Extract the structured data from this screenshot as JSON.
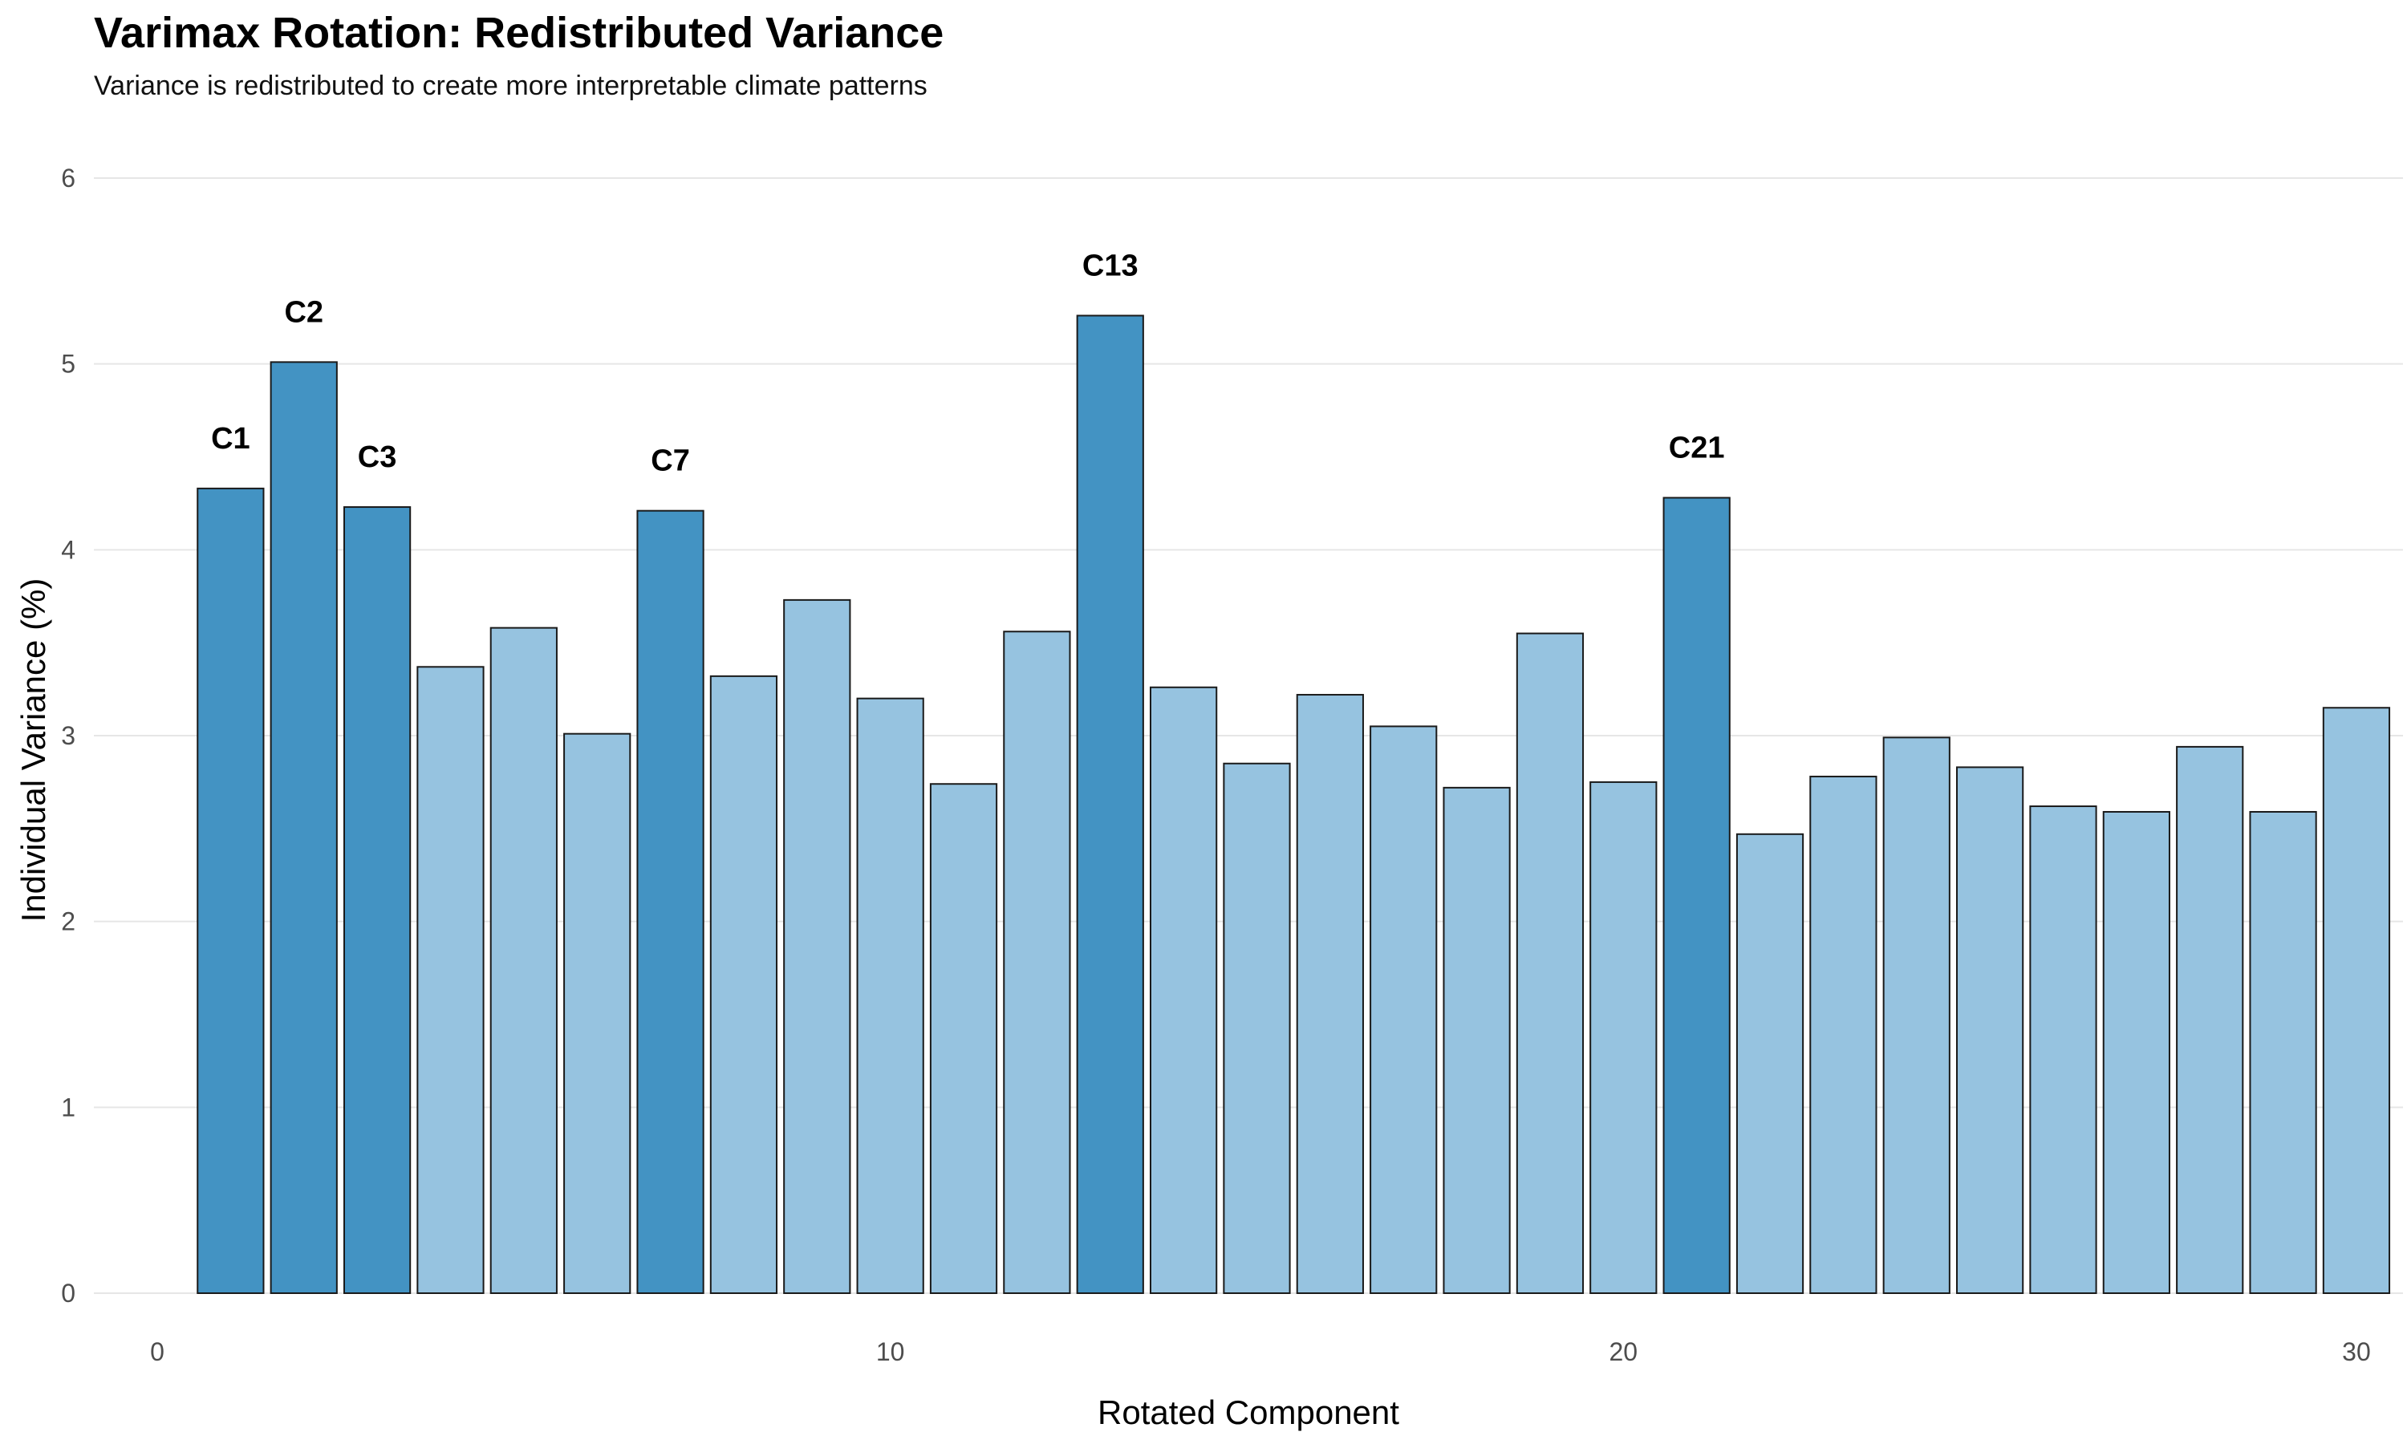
{
  "chart_data": {
    "type": "bar",
    "title": "Varimax Rotation: Redistributed Variance",
    "subtitle": "Variance is redistributed to create more interpretable climate patterns",
    "xlabel": "Rotated Component",
    "ylabel": "Individual Variance (%)",
    "xlim": [
      0,
      31.5
    ],
    "ylim": [
      0,
      6
    ],
    "x_ticks": [
      0,
      10,
      20,
      30
    ],
    "y_ticks": [
      0,
      1,
      2,
      3,
      4,
      5,
      6
    ],
    "grid": true,
    "x": [
      1,
      2,
      3,
      4,
      5,
      6,
      7,
      8,
      9,
      10,
      11,
      12,
      13,
      14,
      15,
      16,
      17,
      18,
      19,
      20,
      21,
      22,
      23,
      24,
      25,
      26,
      27,
      28,
      29,
      30
    ],
    "values": [
      4.33,
      5.01,
      4.23,
      3.37,
      3.58,
      3.01,
      4.21,
      3.32,
      3.73,
      3.2,
      2.74,
      3.56,
      5.26,
      3.26,
      2.85,
      3.22,
      3.05,
      2.72,
      3.55,
      2.75,
      4.28,
      2.47,
      2.78,
      2.99,
      2.83,
      2.62,
      2.59,
      2.94,
      2.59,
      3.15
    ],
    "highlighted": [
      1,
      2,
      3,
      7,
      13,
      21
    ],
    "labels": [
      {
        "x": 1,
        "text": "C1"
      },
      {
        "x": 2,
        "text": "C2"
      },
      {
        "x": 3,
        "text": "C3"
      },
      {
        "x": 7,
        "text": "C7"
      },
      {
        "x": 13,
        "text": "C13"
      },
      {
        "x": 21,
        "text": "C21"
      }
    ],
    "colors": {
      "highlight": "#4393c3",
      "normal": "#96c3e0",
      "bar_outline": "#1a1a1a",
      "grid": "#e6e6e6"
    }
  }
}
